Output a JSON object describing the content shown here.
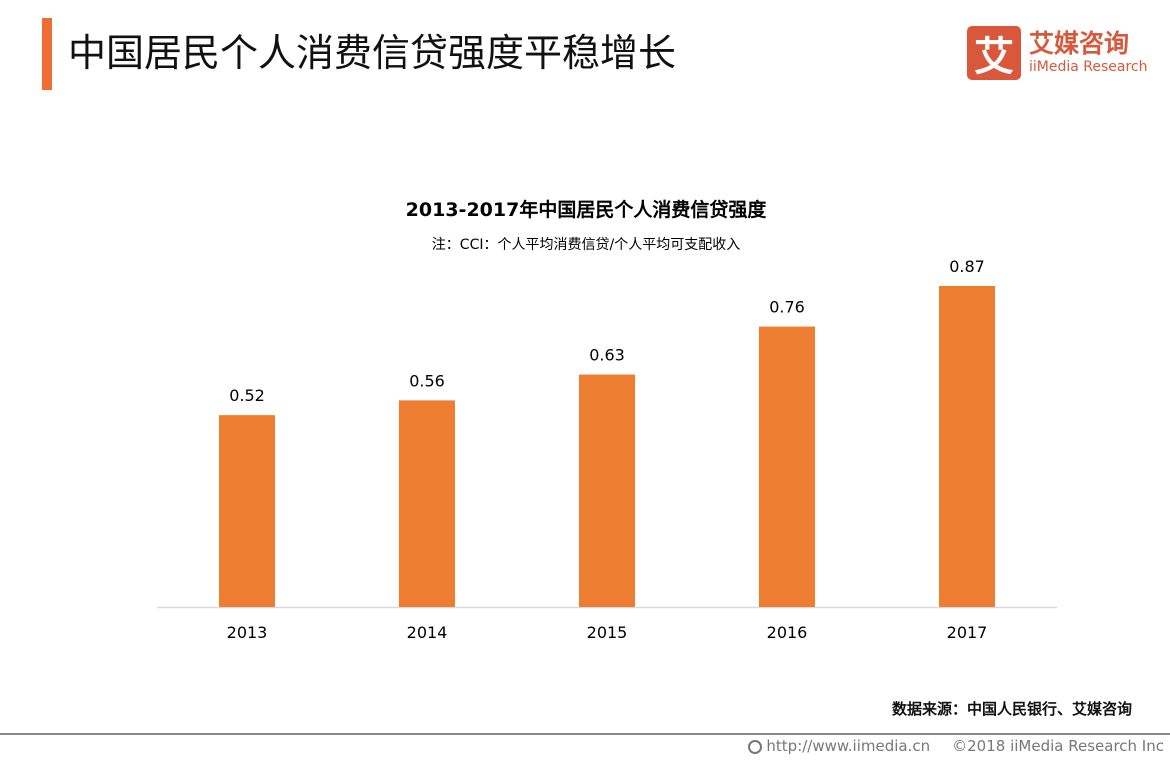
{
  "header": {
    "title": "中国居民个人消费信贷强度平稳增长",
    "accent_color": "#ed6d35"
  },
  "logo": {
    "mark": "艾",
    "name_cn": "艾媒咨询",
    "name_en": "iiMedia Research",
    "color": "#d9573a"
  },
  "chart_data": {
    "type": "bar",
    "title": "2013-2017年中国居民个人消费信贷强度",
    "subtitle": "注：CCI：个人平均消费信贷/个人平均可支配收入",
    "categories": [
      "2013",
      "2014",
      "2015",
      "2016",
      "2017"
    ],
    "values": [
      0.52,
      0.56,
      0.63,
      0.76,
      0.87
    ],
    "data_labels": [
      "0.52",
      "0.56",
      "0.63",
      "0.76",
      "0.87"
    ],
    "ylim": [
      0,
      0.87
    ],
    "bar_color": "#ed7d31",
    "grid": false
  },
  "source": "数据来源：中国人民银行、艾媒咨询",
  "footer": {
    "url": "http://www.iimedia.cn",
    "copyright": "©2018  iiMedia Research  Inc",
    "icon": "globe-icon"
  }
}
